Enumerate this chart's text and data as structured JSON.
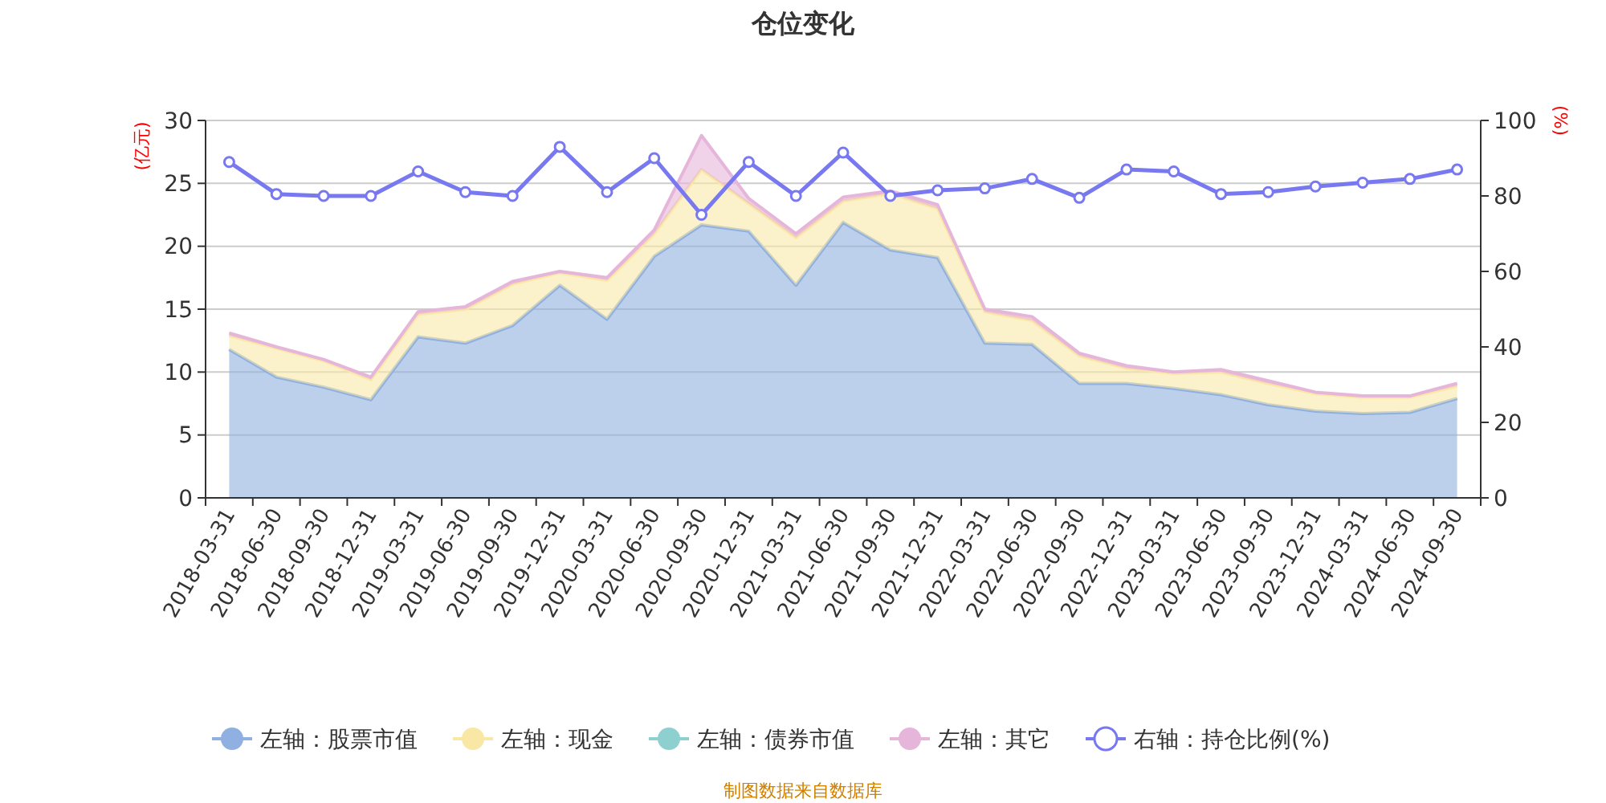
{
  "chart_data": {
    "type": "area",
    "title": "仓位变化",
    "ylabel": "(亿元)",
    "y2label": "(%)",
    "stacked": true,
    "categories": [
      "2018-03-31",
      "2018-06-30",
      "2018-09-30",
      "2018-12-31",
      "2019-03-31",
      "2019-06-30",
      "2019-09-30",
      "2019-12-31",
      "2020-03-31",
      "2020-06-30",
      "2020-09-30",
      "2020-12-31",
      "2021-03-31",
      "2021-06-30",
      "2021-09-30",
      "2021-12-31",
      "2022-03-31",
      "2022-06-30",
      "2022-09-30",
      "2022-12-31",
      "2023-03-31",
      "2023-06-30",
      "2023-09-30",
      "2023-12-31",
      "2024-03-31",
      "2024-06-30",
      "2024-09-30"
    ],
    "series": [
      {
        "name": "左轴：股票市值",
        "color": "#8fb0e0",
        "values": [
          11.8,
          9.6,
          8.8,
          7.8,
          12.8,
          12.3,
          13.7,
          16.9,
          14.2,
          19.2,
          21.7,
          21.2,
          16.9,
          21.9,
          19.7,
          19.1,
          12.3,
          12.2,
          9.1,
          9.1,
          8.7,
          8.2,
          7.4,
          6.9,
          6.7,
          6.8,
          7.9
        ]
      },
      {
        "name": "左轴：现金",
        "color": "#f9e7a6",
        "values": [
          1.1,
          2.3,
          2.1,
          1.6,
          1.8,
          2.7,
          3.3,
          1.0,
          3.1,
          1.8,
          4.4,
          2.2,
          3.8,
          1.7,
          4.5,
          3.9,
          2.5,
          1.9,
          2.2,
          1.2,
          1.2,
          1.8,
          1.7,
          1.4,
          1.3,
          1.2,
          1.0
        ]
      },
      {
        "name": "左轴：债券市值",
        "color": "#8ed0d0",
        "values": [
          null,
          null,
          null,
          null,
          null,
          null,
          null,
          null,
          null,
          null,
          null,
          null,
          null,
          null,
          null,
          null,
          null,
          null,
          null,
          null,
          null,
          null,
          null,
          null,
          null,
          null,
          null
        ]
      },
      {
        "name": "左轴：其它",
        "color": "#e6b5da",
        "values": [
          0.2,
          0.1,
          0.1,
          0.2,
          0.2,
          0.2,
          0.2,
          0.1,
          0.2,
          0.3,
          2.7,
          0.4,
          0.3,
          0.3,
          0.2,
          0.3,
          0.2,
          0.3,
          0.2,
          0.2,
          0.1,
          0.2,
          0.2,
          0.1,
          0.1,
          0.1,
          0.2
        ]
      },
      {
        "name": "右轴：持仓比例(%)",
        "type": "line",
        "axis": "y2",
        "color": "#7878f0",
        "marker": "circle",
        "values": [
          89,
          80.5,
          80,
          80,
          86.5,
          81,
          80,
          93,
          81,
          90,
          75,
          89,
          80,
          91.5,
          80,
          81.5,
          82,
          84.5,
          79.5,
          87,
          86.5,
          80.5,
          81,
          82.5,
          83.5,
          84.5,
          87
        ]
      }
    ],
    "ylim": [
      0,
      30
    ],
    "yticks": [
      0,
      5,
      10,
      15,
      20,
      25,
      30
    ],
    "y2lim": [
      0,
      100
    ],
    "y2ticks": [
      0,
      20,
      40,
      60,
      80,
      100
    ],
    "grid": "y",
    "legend": "bottom",
    "annotations": [
      "制图数据来自数据库"
    ]
  }
}
